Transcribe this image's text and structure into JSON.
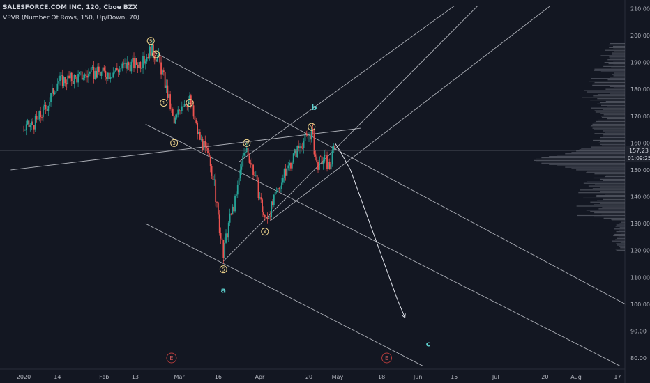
{
  "header": {
    "symbol_line": "SALESFORCE.COM INC, 120, Cboe BZX",
    "indicator_line": "VPVR (Number Of Rows, 150, Up/Down, 70)"
  },
  "chart_data": {
    "type": "candlestick",
    "symbol": "SALESFORCE.COM INC",
    "interval": "120",
    "exchange": "Cboe BZX",
    "indicator": "VPVR (Number Of Rows, 150, Up/Down, 70)",
    "y_axis": {
      "ticks": [
        "210.00",
        "200.00",
        "190.00",
        "180.00",
        "170.00",
        "160.00",
        "150.00",
        "140.00",
        "130.00",
        "120.00",
        "110.00",
        "100.00",
        "90.00",
        "80.00"
      ],
      "range": [
        77,
        213
      ]
    },
    "x_axis": {
      "ticks": [
        "2020",
        "14",
        "Feb",
        "13",
        "Mar",
        "16",
        "Apr",
        "20",
        "May",
        "18",
        "Jun",
        "15",
        "Jul",
        "20",
        "Aug",
        "17"
      ]
    },
    "current_price": {
      "value": 157.23,
      "label": "157.23",
      "countdown": "01:09:25"
    },
    "price_path": [
      {
        "date": "Jan 1",
        "price": 165
      },
      {
        "date": "Jan 6",
        "price": 168
      },
      {
        "date": "Jan 10",
        "price": 174
      },
      {
        "date": "Jan 14",
        "price": 183
      },
      {
        "date": "Jan 20",
        "price": 184
      },
      {
        "date": "Jan 28",
        "price": 186
      },
      {
        "date": "Feb 3",
        "price": 186
      },
      {
        "date": "Feb 10",
        "price": 189
      },
      {
        "date": "Feb 16",
        "price": 190
      },
      {
        "date": "Feb 19",
        "price": 195
      },
      {
        "date": "Feb 22",
        "price": 191
      },
      {
        "date": "Feb 24",
        "price": 184
      },
      {
        "date": "Feb 26",
        "price": 176
      },
      {
        "date": "Feb 28",
        "price": 167
      },
      {
        "date": "Mar 2",
        "price": 175
      },
      {
        "date": "Mar 5",
        "price": 176
      },
      {
        "date": "Mar 8",
        "price": 164
      },
      {
        "date": "Mar 12",
        "price": 155
      },
      {
        "date": "Mar 14",
        "price": 148
      },
      {
        "date": "Mar 16",
        "price": 132
      },
      {
        "date": "Mar 18",
        "price": 118
      },
      {
        "date": "Mar 20",
        "price": 130
      },
      {
        "date": "Mar 23",
        "price": 140
      },
      {
        "date": "Mar 25",
        "price": 153
      },
      {
        "date": "Mar 27",
        "price": 158
      },
      {
        "date": "Mar 30",
        "price": 148
      },
      {
        "date": "Apr 1",
        "price": 140
      },
      {
        "date": "Apr 3",
        "price": 131
      },
      {
        "date": "Apr 6",
        "price": 137
      },
      {
        "date": "Apr 9",
        "price": 145
      },
      {
        "date": "Apr 14",
        "price": 155
      },
      {
        "date": "Apr 17",
        "price": 160
      },
      {
        "date": "Apr 21",
        "price": 164
      },
      {
        "date": "Apr 23",
        "price": 152
      },
      {
        "date": "Apr 26",
        "price": 154
      },
      {
        "date": "Apr 28",
        "price": 151
      },
      {
        "date": "Apr 30",
        "price": 160
      }
    ],
    "projection_path": [
      {
        "date": "Apr 30",
        "price": 160
      },
      {
        "date": "May 2",
        "price": 157
      },
      {
        "date": "May 6",
        "price": 150
      },
      {
        "date": "May 12",
        "price": 134
      },
      {
        "date": "May 18",
        "price": 118
      },
      {
        "date": "May 24",
        "price": 102
      },
      {
        "date": "May 27",
        "price": 95
      }
    ],
    "trend_lines": [
      {
        "from": {
          "date": "Dec 27",
          "price": 150
        },
        "to": {
          "date": "May 10",
          "price": 165.5
        }
      },
      {
        "from": {
          "date": "Feb 20",
          "price": 194
        },
        "to": {
          "date": "Aug 20",
          "price": 100
        }
      },
      {
        "from": {
          "date": "Feb 17",
          "price": 167
        },
        "to": {
          "date": "Aug 18",
          "price": 77
        }
      },
      {
        "from": {
          "date": "Feb 17",
          "price": 130
        },
        "to": {
          "date": "Jun 3",
          "price": 77
        }
      },
      {
        "from": {
          "date": "Mar 18",
          "price": 116
        },
        "to": {
          "date": "Jun 24",
          "price": 211
        }
      },
      {
        "from": {
          "date": "Mar 24",
          "price": 153
        },
        "to": {
          "date": "Jun 15",
          "price": 211
        }
      },
      {
        "from": {
          "date": "Apr 5",
          "price": 131
        },
        "to": {
          "date": "Jul 22",
          "price": 211
        }
      }
    ],
    "wave_labels": [
      {
        "text": "5",
        "date": "Feb 19",
        "price": 198,
        "style": "circle"
      },
      {
        "text": "2",
        "date": "Feb 21",
        "price": 193,
        "style": "circle"
      },
      {
        "text": "1",
        "date": "Feb 24",
        "price": 175,
        "style": "circle"
      },
      {
        "text": "4",
        "date": "Mar 5",
        "price": 175,
        "style": "circle"
      },
      {
        "text": "3",
        "date": "Feb 28",
        "price": 160,
        "style": "circle"
      },
      {
        "text": "W",
        "date": "Mar 27",
        "price": 160,
        "style": "circle"
      },
      {
        "text": "Y",
        "date": "Apr 21",
        "price": 166,
        "style": "circle"
      },
      {
        "text": "X",
        "date": "Apr 3",
        "price": 127,
        "style": "circle"
      },
      {
        "text": "5",
        "date": "Mar 18",
        "price": 113,
        "style": "circle"
      },
      {
        "text": "a",
        "date": "Mar 18",
        "price": 105,
        "style": "letter"
      },
      {
        "text": "b",
        "date": "Apr 22",
        "price": 173,
        "style": "letter"
      },
      {
        "text": "c",
        "date": "Jun 5",
        "price": 85,
        "style": "letter"
      }
    ],
    "event_markers": [
      {
        "text": "E",
        "date": "Feb 27",
        "style": "earnings"
      },
      {
        "text": "E",
        "date": "May 20",
        "style": "earnings"
      }
    ]
  }
}
